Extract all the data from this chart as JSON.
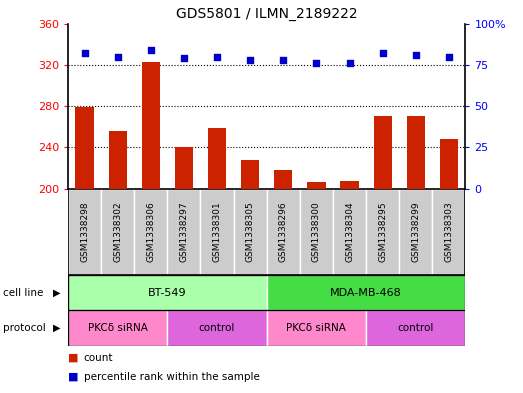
{
  "title": "GDS5801 / ILMN_2189222",
  "samples": [
    "GSM1338298",
    "GSM1338302",
    "GSM1338306",
    "GSM1338297",
    "GSM1338301",
    "GSM1338305",
    "GSM1338296",
    "GSM1338300",
    "GSM1338304",
    "GSM1338295",
    "GSM1338299",
    "GSM1338303"
  ],
  "counts": [
    279,
    256,
    323,
    240,
    259,
    228,
    218,
    206,
    207,
    270,
    270,
    248
  ],
  "percentiles": [
    82,
    80,
    84,
    79,
    80,
    78,
    78,
    76,
    76,
    82,
    81,
    80
  ],
  "cell_lines": [
    {
      "label": "BT-549",
      "start": 0,
      "end": 6,
      "color": "#AAFFAA"
    },
    {
      "label": "MDA-MB-468",
      "start": 6,
      "end": 12,
      "color": "#44DD44"
    }
  ],
  "protocols": [
    {
      "label": "PKCδ siRNA",
      "start": 0,
      "end": 3,
      "color": "#FF88CC"
    },
    {
      "label": "control",
      "start": 3,
      "end": 6,
      "color": "#DD66DD"
    },
    {
      "label": "PKCδ siRNA",
      "start": 6,
      "end": 9,
      "color": "#FF88CC"
    },
    {
      "label": "control",
      "start": 9,
      "end": 12,
      "color": "#DD66DD"
    }
  ],
  "ylim_left": [
    200,
    360
  ],
  "ylim_right": [
    0,
    100
  ],
  "yticks_left": [
    200,
    240,
    280,
    320,
    360
  ],
  "yticks_right": [
    0,
    25,
    50,
    75,
    100
  ],
  "bar_color": "#CC2200",
  "dot_color": "#0000CC",
  "sample_bg": "#CCCCCC",
  "bg_color": "#FFFFFF"
}
